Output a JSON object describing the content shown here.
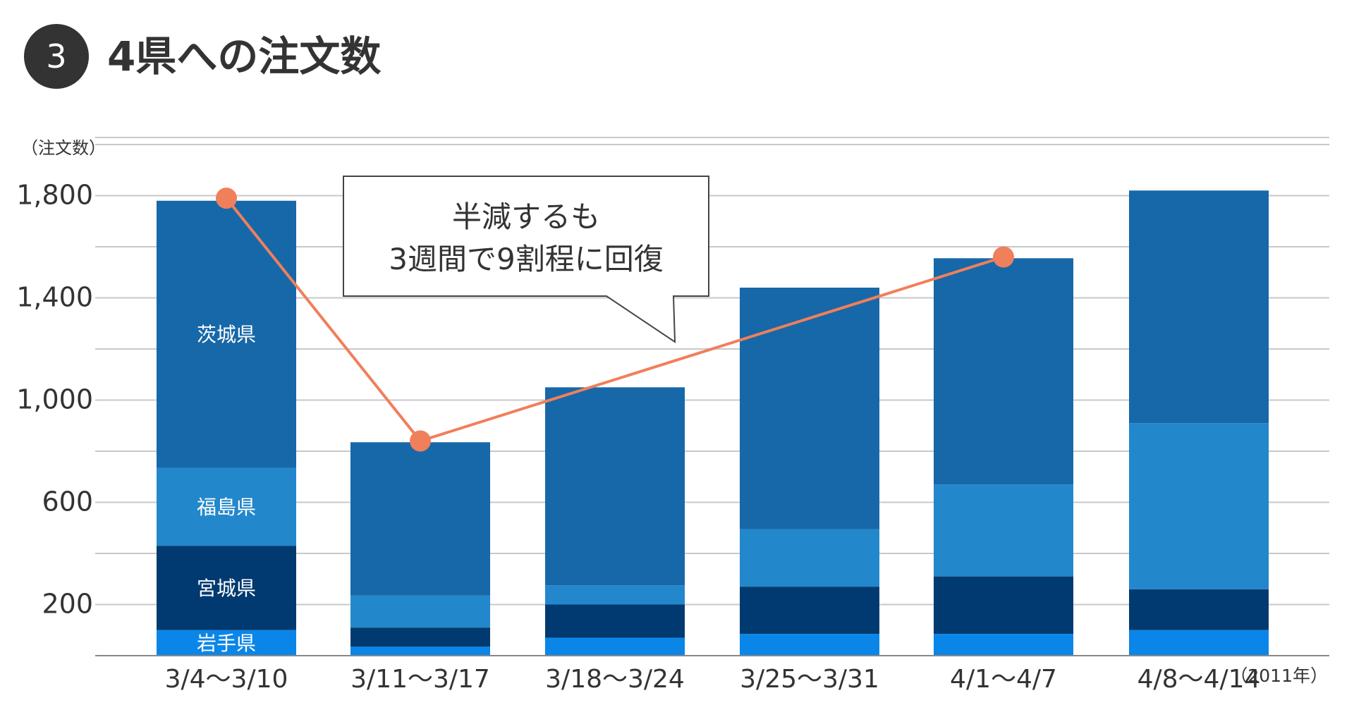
{
  "header": {
    "number": "3",
    "title": "4県への注文数"
  },
  "colors": {
    "iwate": "#0a86e8",
    "miyagi": "#003a70",
    "fukushima": "#2387cc",
    "ibaraki": "#1668a8",
    "trend_line": "#f07f5b",
    "grid": "#c8c8c8",
    "badge": "#333333"
  },
  "chart_data": {
    "type": "bar",
    "stacked": true,
    "ylabel": "（注文数）",
    "y_ticks": [
      "1,800",
      "1,400",
      "1,000",
      "600",
      "200"
    ],
    "y_tick_values": [
      1800,
      1400,
      1000,
      600,
      200
    ],
    "ylim": [
      0,
      2000
    ],
    "categories": [
      "3/4〜3/10",
      "3/11〜3/17",
      "3/18〜3/24",
      "3/25〜3/31",
      "4/1〜4/7",
      "4/8〜4/14"
    ],
    "x_unit": "（2011年）",
    "series": [
      {
        "key": "iwate",
        "name": "岩手県",
        "values": [
          100,
          35,
          70,
          85,
          85,
          100
        ]
      },
      {
        "key": "miyagi",
        "name": "宮城県",
        "values": [
          330,
          75,
          130,
          185,
          225,
          160
        ]
      },
      {
        "key": "fukushima",
        "name": "福島県",
        "values": [
          305,
          125,
          75,
          225,
          360,
          650
        ]
      },
      {
        "key": "ibaraki",
        "name": "茨城県",
        "values": [
          1045,
          600,
          775,
          945,
          885,
          910
        ]
      }
    ],
    "series_labels_on_category": 0,
    "trend_line": {
      "category_indices": [
        0,
        1,
        4
      ],
      "values": [
        1790,
        840,
        1560
      ]
    },
    "grid": true,
    "annotation": {
      "lines": [
        "半減するも",
        "3週間で9割程に回復"
      ]
    }
  }
}
